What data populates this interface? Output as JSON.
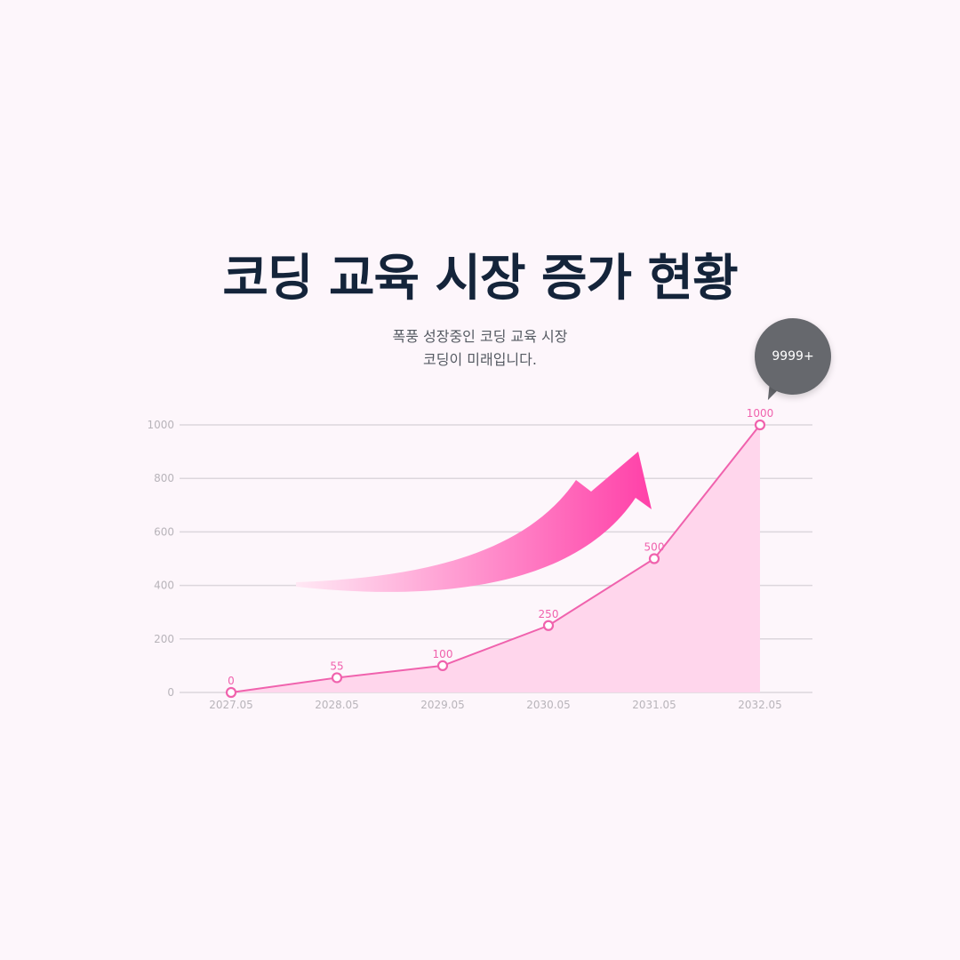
{
  "title": "코딩 교육 시장 증가 현황",
  "subtitle_lines": [
    "폭풍 성장중인 코딩 교육 시장",
    "코딩이 미래입니다."
  ],
  "badge": "9999+",
  "colors": {
    "background": "#fdf6fb",
    "title": "#14243a",
    "line": "#f062ad",
    "area": "#ffd6ec",
    "grid": "#dcd6dc",
    "badge": "#66686d",
    "arrow_start": "#ffe8f4",
    "arrow_end": "#ff40a8"
  },
  "chart_data": {
    "type": "area",
    "categories": [
      "2027.05",
      "2028.05",
      "2029.05",
      "2030.05",
      "2031.05",
      "2032.05"
    ],
    "values": [
      0,
      55,
      100,
      250,
      500,
      1000
    ],
    "data_labels": [
      "0",
      "55",
      "100",
      "250",
      "500",
      "1000"
    ],
    "y_ticks": [
      0,
      200,
      400,
      600,
      800,
      1000
    ],
    "ylim": [
      0,
      1000
    ],
    "grid": true,
    "markers": "hollow-circle",
    "decoration": "upward-curved-arrow"
  }
}
